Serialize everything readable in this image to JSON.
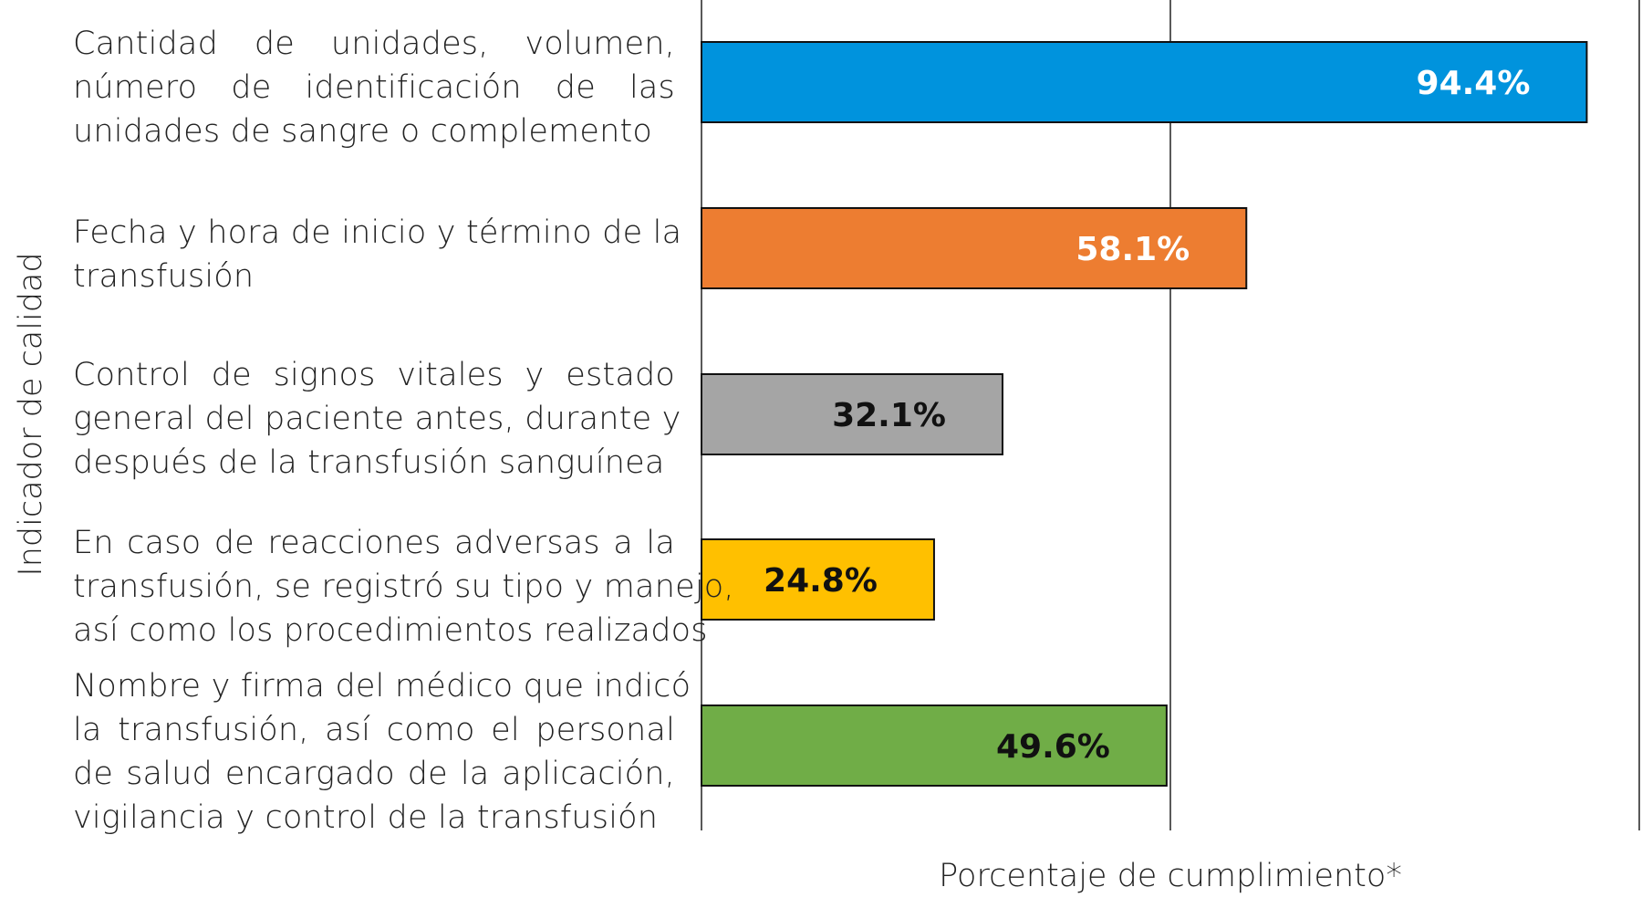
{
  "chart_data": {
    "type": "bar",
    "orientation": "horizontal",
    "xlabel": "Porcentaje de cumplimiento*",
    "ylabel": "Indicador de calidad",
    "xlim": [
      0,
      100
    ],
    "grid": "vertical lines at 50 and 100",
    "categories": [
      [
        "Cantidad de unidades, volumen,",
        "número de identificación de las",
        "unidades de sangre o complemento"
      ],
      [
        "Fecha y hora de inicio y término de la",
        "transfusión"
      ],
      [
        "Control de signos vitales y estado",
        "general del paciente antes, durante y",
        "después de la transfusión sanguínea"
      ],
      [
        "En caso de reacciones adversas a la",
        "transfusión, se registró su tipo y manejo,",
        "así como los procedimientos realizados"
      ],
      [
        "Nombre y firma del médico que indicó",
        "la transfusión, así como el personal",
        "de salud encargado de la aplicación,",
        "vigilancia y control de la transfusión"
      ]
    ],
    "values": [
      94.4,
      58.1,
      32.1,
      24.8,
      49.6
    ],
    "data_labels": [
      "94.4%",
      "58.1%",
      "32.1%",
      "24.8%",
      "49.6%"
    ],
    "colors": [
      "#0093DD",
      "#ED7D31",
      "#A5A5A5",
      "#FFC000",
      "#70AD47"
    ],
    "label_colors": [
      "#FFFFFF",
      "#FFFFFF",
      "#111111",
      "#111111",
      "#111111"
    ]
  }
}
